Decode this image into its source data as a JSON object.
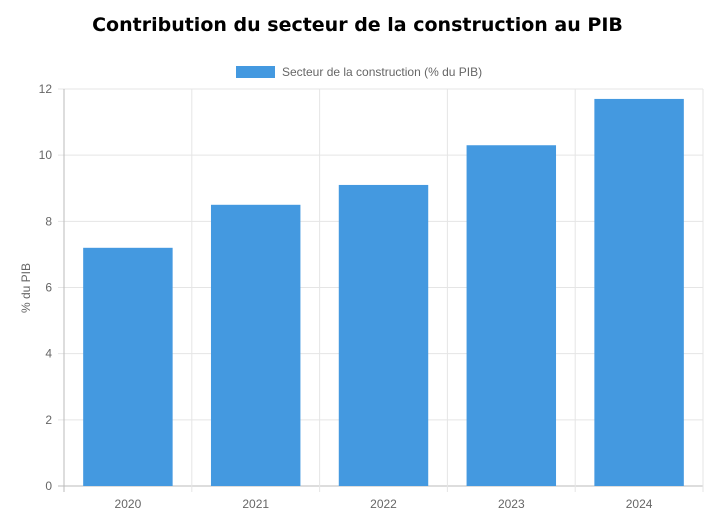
{
  "chart_data": {
    "type": "bar",
    "title": "Contribution du secteur de la construction au PIB",
    "xlabel": "",
    "ylabel": "% du PIB",
    "categories": [
      "2020",
      "2021",
      "2022",
      "2023",
      "2024"
    ],
    "series": [
      {
        "name": "Secteur de la construction (% du PIB)",
        "values": [
          7.2,
          8.5,
          9.1,
          10.3,
          11.7
        ],
        "color": "#4499E0"
      }
    ],
    "ylim": [
      0,
      12
    ],
    "yticks": [
      "0",
      "2",
      "4",
      "6",
      "8",
      "10",
      "12"
    ],
    "grid": true,
    "legend_position": "top-center"
  }
}
